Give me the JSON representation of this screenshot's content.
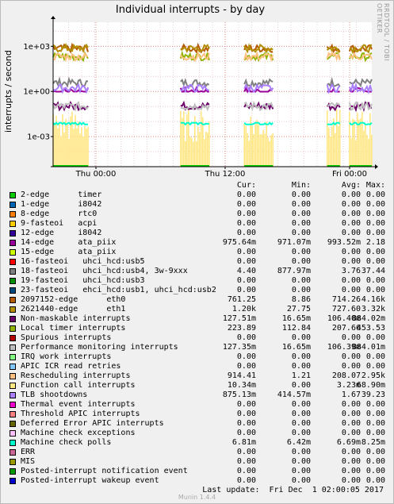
{
  "chart_data": {
    "type": "line",
    "title": "Individual interrupts - by day",
    "ylabel": "interrupts / second",
    "yscale": "log",
    "y_ticks": [
      "1e+03",
      "1e+00",
      "1e-03"
    ],
    "y_tick_values": [
      1000,
      1,
      0.001
    ],
    "x_ticks": [
      "Thu 00:00",
      "Thu 12:00",
      "Fri 00:00"
    ],
    "grid": true,
    "legend_columns": [
      "Cur:",
      "Min:",
      "Avg:",
      "Max:"
    ],
    "active_intervals": [
      [
        0,
        0.11
      ],
      [
        0.4,
        0.49
      ],
      [
        0.6,
        0.69
      ],
      [
        0.86,
        0.9
      ],
      [
        0.93,
        1.0
      ]
    ],
    "series": [
      {
        "name": "2-edge      timer",
        "color": "#00CC00",
        "cur": "0.00",
        "min": "0.00",
        "avg": "0.00",
        "max": "0.00"
      },
      {
        "name": "1-edge      i8042",
        "color": "#0066B3",
        "cur": "0.00",
        "min": "0.00",
        "avg": "0.00",
        "max": "0.00"
      },
      {
        "name": "8-edge      rtc0",
        "color": "#FF8000",
        "cur": "0.00",
        "min": "0.00",
        "avg": "0.00",
        "max": "0.00"
      },
      {
        "name": "9-fasteoi   acpi",
        "color": "#FFCC00",
        "cur": "0.00",
        "min": "0.00",
        "avg": "0.00",
        "max": "0.00"
      },
      {
        "name": "12-edge     i8042",
        "color": "#330099",
        "cur": "0.00",
        "min": "0.00",
        "avg": "0.00",
        "max": "0.00"
      },
      {
        "name": "14-edge     ata_piix",
        "color": "#990099",
        "cur": "975.64m",
        "min": "971.07m",
        "avg": "993.52m",
        "max": "2.18"
      },
      {
        "name": "15-edge     ata_piix",
        "color": "#CCFF00",
        "cur": "0.00",
        "min": "0.00",
        "avg": "0.00",
        "max": "0.00"
      },
      {
        "name": "16-fasteoi   uhci_hcd:usb5",
        "color": "#FF0000",
        "cur": "0.00",
        "min": "0.00",
        "avg": "0.00",
        "max": "0.00"
      },
      {
        "name": "18-fasteoi   uhci_hcd:usb4, 3w-9xxx",
        "color": "#808080",
        "cur": "4.40",
        "min": "877.97m",
        "avg": "3.76",
        "max": "37.44"
      },
      {
        "name": "19-fasteoi   uhci_hcd:usb3",
        "color": "#008F00",
        "cur": "0.00",
        "min": "0.00",
        "avg": "0.00",
        "max": "0.00"
      },
      {
        "name": "23-fasteoi   ehci_hcd:usb1, uhci_hcd:usb2",
        "color": "#00487D",
        "cur": "0.00",
        "min": "0.00",
        "avg": "0.00",
        "max": "0.00"
      },
      {
        "name": "2097152-edge      eth0",
        "color": "#B35A00",
        "cur": "761.25",
        "min": "8.86",
        "avg": "714.26",
        "max": "4.16k"
      },
      {
        "name": "2621440-edge      eth1",
        "color": "#B38F00",
        "cur": "1.20k",
        "min": "27.75",
        "avg": "727.60",
        "max": "3.32k"
      },
      {
        "name": "Non-maskable interrupts",
        "color": "#6B006B",
        "cur": "127.51m",
        "min": "16.65m",
        "avg": "106.40m",
        "max": "884.02m"
      },
      {
        "name": "Local timer interrupts",
        "color": "#8FB300",
        "cur": "223.89",
        "min": "112.84",
        "avg": "207.66",
        "max": "453.53"
      },
      {
        "name": "Spurious interrupts",
        "color": "#B30000",
        "cur": "0.00",
        "min": "0.00",
        "avg": "0.00",
        "max": "0.00"
      },
      {
        "name": "Performance monitoring interrupts",
        "color": "#BEBEBE",
        "cur": "127.35m",
        "min": "16.65m",
        "avg": "106.39m",
        "max": "884.01m"
      },
      {
        "name": "IRQ work interrupts",
        "color": "#80FF80",
        "cur": "0.00",
        "min": "0.00",
        "avg": "0.00",
        "max": "0.00"
      },
      {
        "name": "APIC ICR read retries",
        "color": "#80C9FF",
        "cur": "0.00",
        "min": "0.00",
        "avg": "0.00",
        "max": "0.00"
      },
      {
        "name": "Rescheduling interrupts",
        "color": "#FFC080",
        "cur": "914.41",
        "min": "1.21",
        "avg": "208.07",
        "max": "2.95k"
      },
      {
        "name": "Function call interrupts",
        "color": "#FFE680",
        "cur": "10.34m",
        "min": "0.00",
        "avg": "3.23m",
        "max": "68.90m"
      },
      {
        "name": "TLB shootdowns",
        "color": "#AA80FF",
        "cur": "875.13m",
        "min": "414.57m",
        "avg": "1.67",
        "max": "39.23"
      },
      {
        "name": "Thermal event interrupts",
        "color": "#EE00CC",
        "cur": "0.00",
        "min": "0.00",
        "avg": "0.00",
        "max": "0.00"
      },
      {
        "name": "Threshold APIC interrupts",
        "color": "#FF8080",
        "cur": "0.00",
        "min": "0.00",
        "avg": "0.00",
        "max": "0.00"
      },
      {
        "name": "Deferred Error APIC interrupts",
        "color": "#666600",
        "cur": "0.00",
        "min": "0.00",
        "avg": "0.00",
        "max": "0.00"
      },
      {
        "name": "Machine check exceptions",
        "color": "#FFBFFF",
        "cur": "0.00",
        "min": "0.00",
        "avg": "0.00",
        "max": "0.00"
      },
      {
        "name": "Machine check polls",
        "color": "#00FFCC",
        "cur": "6.81m",
        "min": "6.42m",
        "avg": "6.69m",
        "max": "8.25m"
      },
      {
        "name": "ERR",
        "color": "#CC6699",
        "cur": "0.00",
        "min": "0.00",
        "avg": "0.00",
        "max": "0.00"
      },
      {
        "name": "MIS",
        "color": "#999900",
        "cur": "0.00",
        "min": "0.00",
        "avg": "0.00",
        "max": "0.00"
      },
      {
        "name": "Posted-interrupt notification event",
        "color": "#009900",
        "cur": "0.00",
        "min": "0.00",
        "avg": "0.00",
        "max": "0.00"
      },
      {
        "name": "Posted-interrupt wakeup event",
        "color": "#0000CC",
        "cur": "0.00",
        "min": "0.00",
        "avg": "0.00",
        "max": "0.00"
      }
    ]
  },
  "page": {
    "vendor_text": "RRDTOOL / TOBI OETIKER",
    "last_update": "Last update:  Fri Dec  1 02:00:05 2017",
    "munin_version": "Munin 1.4.4"
  }
}
